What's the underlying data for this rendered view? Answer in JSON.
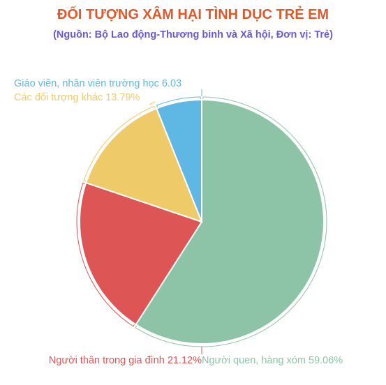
{
  "chart_data": {
    "type": "pie",
    "title": "ĐỐI TƯỢNG XÂM HẠI TÌNH DỤC TRẺ EM",
    "subtitle": "(Nguồn:  Bộ Lao động-Thương binh và Xã hội, Đơn vị: Trẻ)",
    "slices": [
      {
        "label": "Người quen, hàng xóm 59.06%",
        "value": 59.06,
        "color": "#8dc3a7"
      },
      {
        "label": "Người thân trong gia đình 21.12%",
        "value": 21.12,
        "color": "#dd5555"
      },
      {
        "label": "Các đối tượng khác 13.79%",
        "value": 13.79,
        "color": "#efca69"
      },
      {
        "label": "Giáo viên, nhân viên trường học 6.03",
        "value": 6.03,
        "color": "#5fb7e4"
      }
    ]
  },
  "colors": {
    "title": "#e0592a",
    "subtitle": "#6a5acd"
  }
}
